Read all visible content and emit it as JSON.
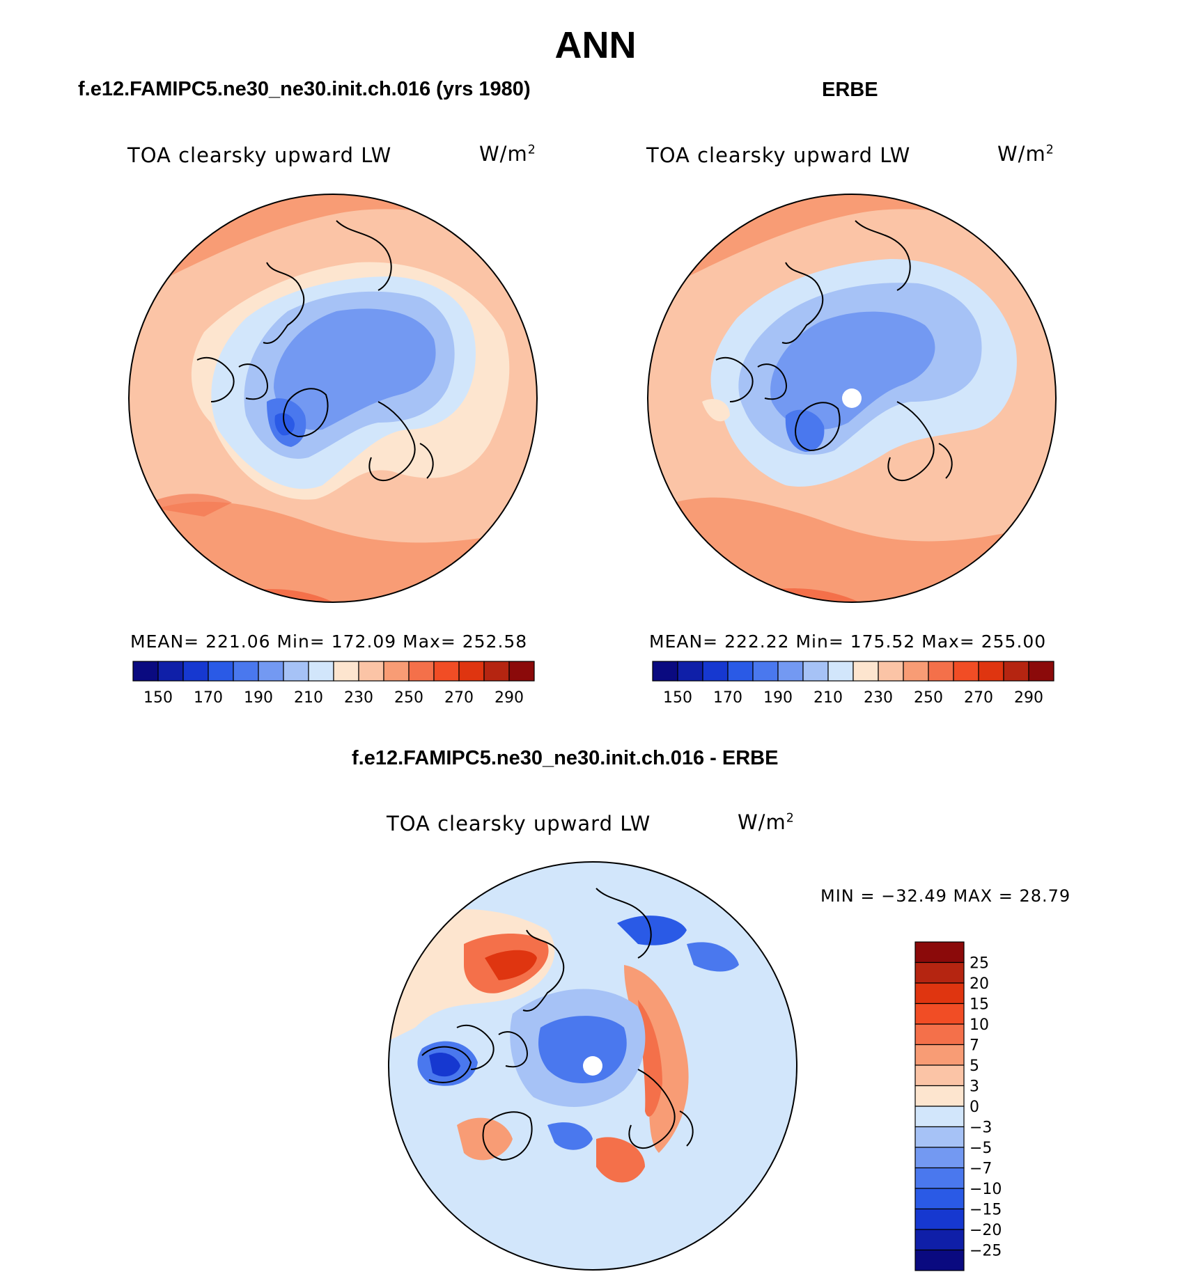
{
  "header": {
    "season": "ANN"
  },
  "panels": [
    {
      "case_title": "f.e12.FAMIPC5.ne30_ne30.init.ch.016 (yrs 1980)",
      "variable": "TOA clearsky upward LW",
      "units_base": "W/m",
      "units_exp": "2",
      "stats": "MEAN= 221.06   Min= 172.09   Max= 252.58",
      "has_pole_hole": false
    },
    {
      "case_title": "ERBE",
      "variable": "TOA clearsky upward LW",
      "units_base": "W/m",
      "units_exp": "2",
      "stats": "MEAN= 222.22   Min= 175.52   Max= 255.00",
      "has_pole_hole": true
    }
  ],
  "colorbar_top": {
    "colors": [
      "#0a0a80",
      "#0f1fa8",
      "#1638d0",
      "#2a5ae6",
      "#4a78ee",
      "#7399f2",
      "#a6c2f6",
      "#d2e6fb",
      "#fde5cf",
      "#fbc4a6",
      "#f89c75",
      "#f4704a",
      "#f14d25",
      "#df3510",
      "#b52511",
      "#8b0a0a"
    ],
    "tick_labels": [
      "150",
      "170",
      "190",
      "210",
      "230",
      "250",
      "270",
      "290"
    ]
  },
  "diff_panel": {
    "title": "f.e12.FAMIPC5.ne30_ne30.init.ch.016 - ERBE",
    "variable": "TOA clearsky upward LW",
    "units_base": "W/m",
    "units_exp": "2",
    "minmax": "MIN = −32.49 MAX =   28.79"
  },
  "colorbar_diff": {
    "colors": [
      "#8b0a0a",
      "#b52511",
      "#df3510",
      "#f14d25",
      "#f4704a",
      "#f89c75",
      "#fbc4a6",
      "#fde5cf",
      "#d2e6fb",
      "#a6c2f6",
      "#7399f2",
      "#4a78ee",
      "#2a5ae6",
      "#1638d0",
      "#0f1fa8",
      "#0a0a80"
    ],
    "tick_labels": [
      "25",
      "20",
      "15",
      "10",
      "7",
      "5",
      "3",
      "0",
      "−3",
      "−5",
      "−7",
      "−10",
      "−15",
      "−20",
      "−25"
    ]
  }
}
